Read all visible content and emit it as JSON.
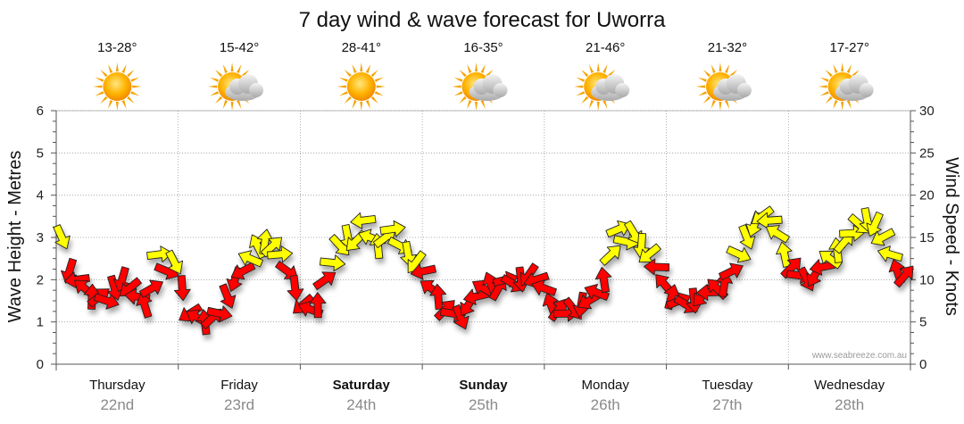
{
  "title": "7 day wind & wave forecast for Uworra",
  "left_axis_label": "Wave Height - Metres",
  "right_axis_label": "Wind Speed - Knots",
  "credit": "www.seabreeze.com.au",
  "colors": {
    "light_wind": "#ffff00",
    "strong_wind": "#ff0000",
    "grid": "#999999",
    "date": "#8a8a8a"
  },
  "days": [
    {
      "name": "Thursday",
      "date": "22nd",
      "temp": "13-28°",
      "icon": "sun-icon",
      "bold": false
    },
    {
      "name": "Friday",
      "date": "23rd",
      "temp": "15-42°",
      "icon": "sun-cloud-icon",
      "bold": false
    },
    {
      "name": "Saturday",
      "date": "24th",
      "temp": "28-41°",
      "icon": "sun-icon",
      "bold": true
    },
    {
      "name": "Sunday",
      "date": "25th",
      "temp": "16-35°",
      "icon": "sun-cloud-icon",
      "bold": true
    },
    {
      "name": "Monday",
      "date": "26th",
      "temp": "21-46°",
      "icon": "sun-cloud-icon",
      "bold": false
    },
    {
      "name": "Tuesday",
      "date": "27th",
      "temp": "21-32°",
      "icon": "sun-cloud-icon",
      "bold": false
    },
    {
      "name": "Wednesday",
      "date": "28th",
      "temp": "17-27°",
      "icon": "sun-cloud-icon",
      "bold": false
    }
  ],
  "chart_data": {
    "type": "line",
    "left_axis": {
      "ticks": [
        "0",
        "1",
        "2",
        "3",
        "4",
        "5",
        "6"
      ],
      "ylim": [
        0,
        6
      ]
    },
    "right_axis": {
      "ticks": [
        "0",
        "5",
        "10",
        "15",
        "20",
        "25",
        "30"
      ],
      "ylim": [
        0,
        30
      ]
    },
    "grid": true,
    "wind_knots": [
      15,
      11,
      10,
      9,
      8,
      8,
      7.5,
      9,
      10,
      9,
      8,
      7,
      9,
      13,
      11,
      12,
      9,
      6,
      5.5,
      5,
      5.5,
      6,
      8,
      10,
      11,
      12.5,
      14,
      14.5,
      14,
      13,
      11,
      9,
      7,
      6.5,
      7,
      10,
      12,
      14,
      15,
      14.5,
      17,
      15,
      14,
      15,
      16,
      14,
      13,
      12,
      11,
      9,
      8,
      6.5,
      6,
      5.5,
      7,
      8,
      9,
      9.5,
      9,
      10,
      9.5,
      10,
      10.5,
      10,
      9,
      7,
      6.5,
      6,
      6.5,
      7,
      7.5,
      8.5,
      10,
      13,
      16,
      14.5,
      15.5,
      14,
      13,
      11.5,
      9.5,
      8,
      7.5,
      7,
      7.5,
      8,
      8.5,
      9,
      9.5,
      11,
      13,
      15,
      16.5,
      17.5,
      17,
      15.5,
      13,
      11.5,
      10.5,
      10,
      10.5,
      11.5,
      12.5,
      13.5,
      14.5,
      15.5,
      16.5,
      17,
      16.5,
      15,
      13,
      11,
      10.5
    ],
    "strong_threshold_knots": 12,
    "wave_height_m": []
  }
}
